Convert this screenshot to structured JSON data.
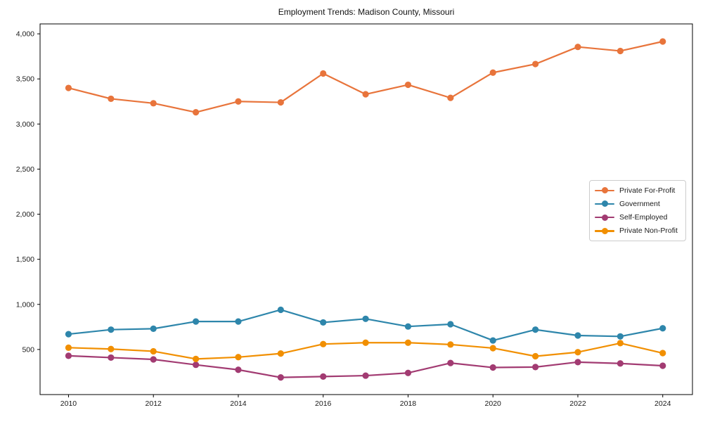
{
  "chart_data": {
    "type": "line",
    "title": "Employment Trends: Madison County, Missouri",
    "xlabel": "",
    "ylabel": "",
    "x": [
      2010,
      2011,
      2012,
      2013,
      2014,
      2015,
      2016,
      2017,
      2018,
      2019,
      2020,
      2021,
      2022,
      2023,
      2024
    ],
    "series": [
      {
        "name": "Private For-Profit",
        "color": "#E8743B",
        "values": [
          3400,
          3280,
          3230,
          3130,
          3250,
          3240,
          3560,
          3330,
          3435,
          3290,
          3570,
          3665,
          3855,
          3810,
          3915
        ]
      },
      {
        "name": "Government",
        "color": "#2E86AB",
        "values": [
          670,
          720,
          730,
          810,
          810,
          940,
          800,
          840,
          755,
          780,
          600,
          720,
          655,
          645,
          735
        ]
      },
      {
        "name": "Self-Employed",
        "color": "#A23B72",
        "values": [
          430,
          410,
          390,
          330,
          275,
          190,
          200,
          210,
          240,
          350,
          300,
          305,
          360,
          345,
          320
        ]
      },
      {
        "name": "Private Non-Profit",
        "color": "#F18F01",
        "values": [
          520,
          505,
          480,
          395,
          415,
          455,
          560,
          575,
          575,
          555,
          515,
          425,
          470,
          570,
          460
        ]
      }
    ],
    "x_ticks": {
      "values": [
        2010,
        2012,
        2014,
        2016,
        2018,
        2020,
        2022,
        2024
      ],
      "labels": [
        "2010",
        "2012",
        "2014",
        "2016",
        "2018",
        "2020",
        "2022",
        "2024"
      ]
    },
    "y_ticks": {
      "values": [
        500,
        1000,
        1500,
        2000,
        2500,
        3000,
        3500,
        4000
      ],
      "labels": [
        "500",
        "1,000",
        "1,500",
        "2,000",
        "2,500",
        "3,000",
        "3,500",
        "4,000"
      ]
    },
    "xlim": [
      2009.33,
      2024.7
    ],
    "ylim": [
      0,
      4110
    ],
    "grid": false,
    "legend_position": "center-right",
    "axis_color": "#000000",
    "text_color": "#1a1a1a",
    "background": "#ffffff"
  }
}
